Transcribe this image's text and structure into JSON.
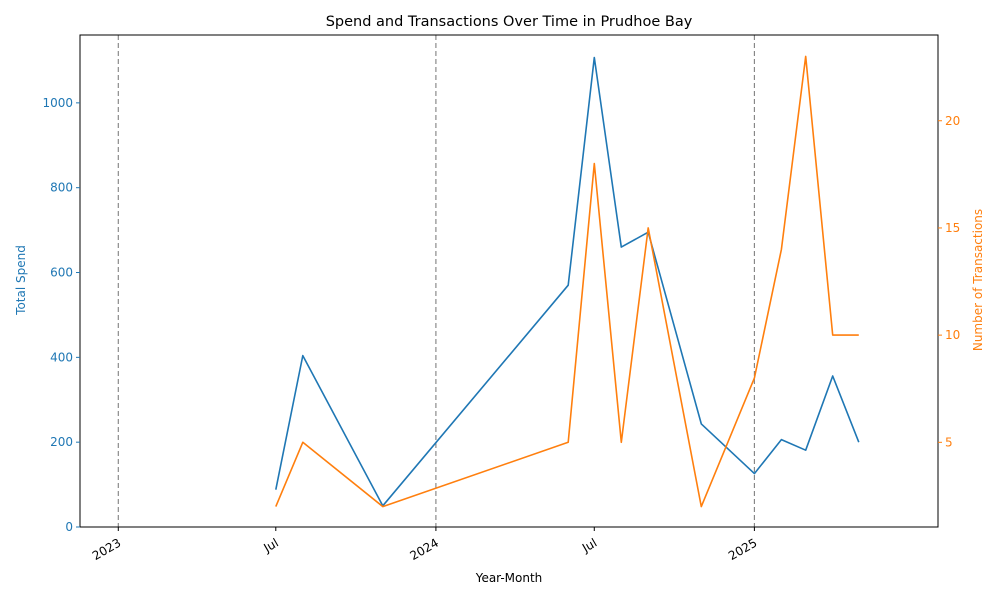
{
  "chart_data": {
    "type": "line",
    "title": "Spend and Transactions Over Time in Prudhoe Bay",
    "xlabel": "Year-Month",
    "x_ticks": [
      {
        "date": "2023-01-01",
        "label": "2023"
      },
      {
        "date": "2023-07-01",
        "label": "Jul"
      },
      {
        "date": "2024-01-01",
        "label": "2024"
      },
      {
        "date": "2024-07-01",
        "label": "Jul"
      },
      {
        "date": "2025-01-01",
        "label": "2025"
      }
    ],
    "year_boundaries": [
      "2023-01-01",
      "2024-01-01",
      "2025-01-01"
    ],
    "xlim": [
      "2022-11-18",
      "2025-07-31"
    ],
    "series": [
      {
        "name": "Total Spend",
        "axis": "left",
        "color": "#1f77b4",
        "ylabel": "Total Spend",
        "ylim": [
          0,
          1160
        ],
        "y_ticks": [
          0,
          200,
          400,
          600,
          800,
          1000
        ],
        "points": [
          {
            "x": "2023-07-01",
            "y": 88
          },
          {
            "x": "2023-08-01",
            "y": 404
          },
          {
            "x": "2023-11-01",
            "y": 50
          },
          {
            "x": "2024-06-01",
            "y": 570
          },
          {
            "x": "2024-07-01",
            "y": 1107
          },
          {
            "x": "2024-08-01",
            "y": 660
          },
          {
            "x": "2024-09-01",
            "y": 695
          },
          {
            "x": "2024-11-01",
            "y": 243
          },
          {
            "x": "2025-01-01",
            "y": 126
          },
          {
            "x": "2025-02-01",
            "y": 206
          },
          {
            "x": "2025-03-01",
            "y": 181
          },
          {
            "x": "2025-04-01",
            "y": 356
          },
          {
            "x": "2025-05-01",
            "y": 200
          }
        ]
      },
      {
        "name": "Number of Transactions",
        "axis": "right",
        "color": "#ff7f0e",
        "ylabel": "Number of Transactions",
        "ylim": [
          1.05,
          24
        ],
        "y_ticks": [
          5,
          10,
          15,
          20
        ],
        "points": [
          {
            "x": "2023-07-01",
            "y": 2
          },
          {
            "x": "2023-08-01",
            "y": 5
          },
          {
            "x": "2023-11-01",
            "y": 2
          },
          {
            "x": "2024-06-01",
            "y": 5
          },
          {
            "x": "2024-07-01",
            "y": 18
          },
          {
            "x": "2024-08-01",
            "y": 5
          },
          {
            "x": "2024-09-01",
            "y": 15
          },
          {
            "x": "2024-11-01",
            "y": 2
          },
          {
            "x": "2025-01-01",
            "y": 8
          },
          {
            "x": "2025-02-01",
            "y": 14
          },
          {
            "x": "2025-03-01",
            "y": 23
          },
          {
            "x": "2025-04-01",
            "y": 10
          },
          {
            "x": "2025-05-01",
            "y": 10
          }
        ]
      }
    ],
    "grid": false,
    "legend": "none"
  },
  "colors": {
    "left_axis": "#1f77b4",
    "right_axis": "#ff7f0e",
    "year_line": "#808080"
  }
}
